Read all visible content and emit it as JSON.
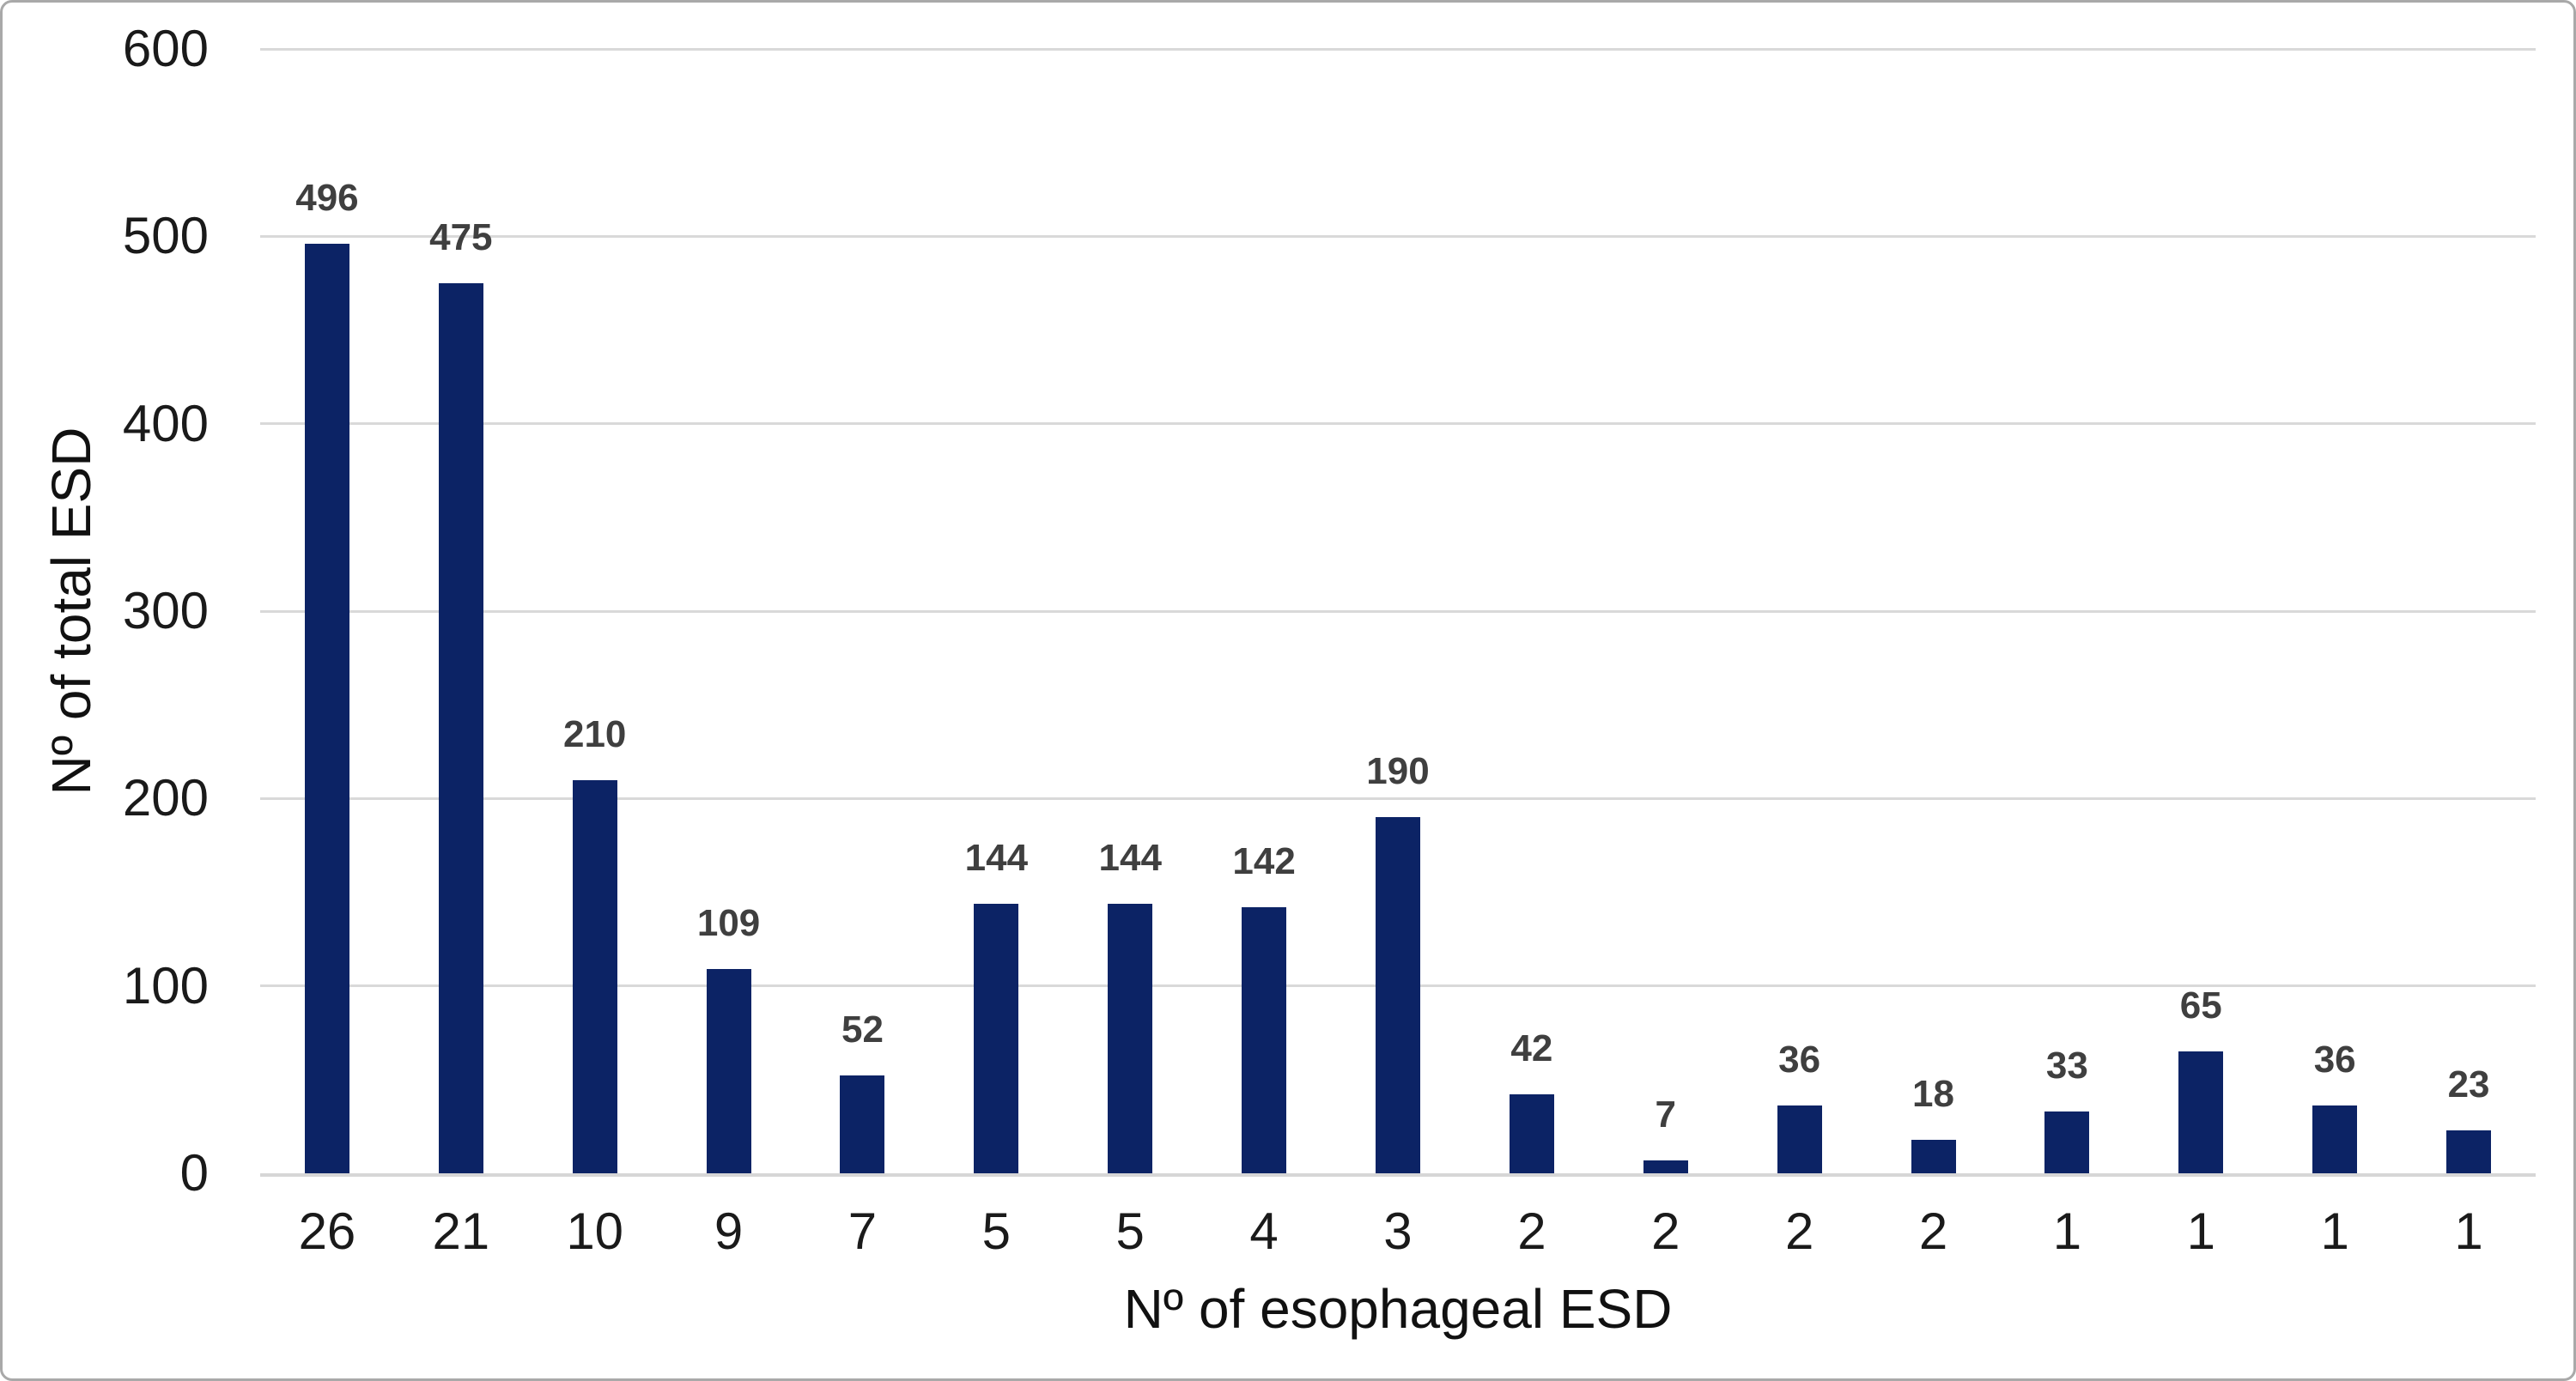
{
  "chart_data": {
    "type": "bar",
    "title": "",
    "categories": [
      "26",
      "21",
      "10",
      "9",
      "7",
      "5",
      "5",
      "4",
      "3",
      "2",
      "2",
      "2",
      "2",
      "1",
      "1",
      "1",
      "1"
    ],
    "values": [
      496,
      475,
      210,
      109,
      52,
      144,
      144,
      142,
      190,
      42,
      7,
      36,
      18,
      33,
      65,
      36,
      23
    ],
    "xlabel": "Nº of esophageal ESD",
    "ylabel": "Nº of total ESD",
    "ylim": [
      0,
      600
    ],
    "yticks": [
      0,
      100,
      200,
      300,
      400,
      500,
      600
    ],
    "grid": true,
    "legend_position": "none",
    "data_labels_shown": true,
    "colors": {
      "bar": "#0c2365",
      "data_label": "#3f3f3f",
      "tick_label": "#1a1a1a",
      "gridline": "#d9d9d9",
      "figure_border": "#a9a9a9",
      "background": "#ffffff"
    }
  }
}
